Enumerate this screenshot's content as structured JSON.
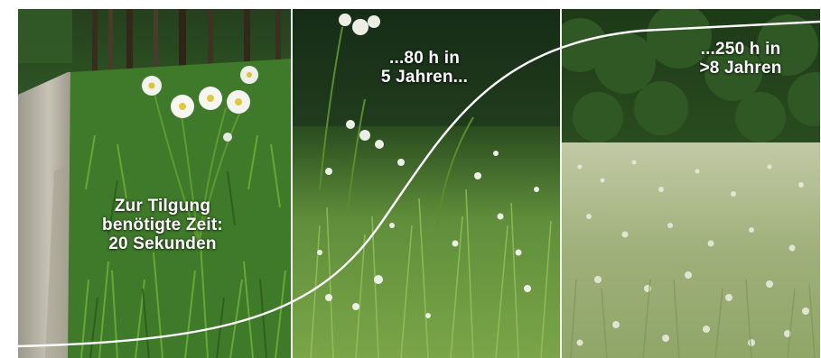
{
  "captions": {
    "panel1": {
      "line1": "Zur Tilgung",
      "line2": "benötigte Zeit:",
      "line3": "20 Sekunden"
    },
    "panel2": {
      "line1": "...80 h in",
      "line2": "5 Jahren..."
    },
    "panel3": {
      "line1": "...250 h in",
      "line2": ">8 Jahren"
    }
  },
  "colors": {
    "caption_text": "#ffffff",
    "curve": "#ffffff",
    "grass_dark": "#1f4a17",
    "grass_mid": "#4f8a2c",
    "meadow_light": "#a9b98a",
    "path": "#b9b6a8"
  }
}
